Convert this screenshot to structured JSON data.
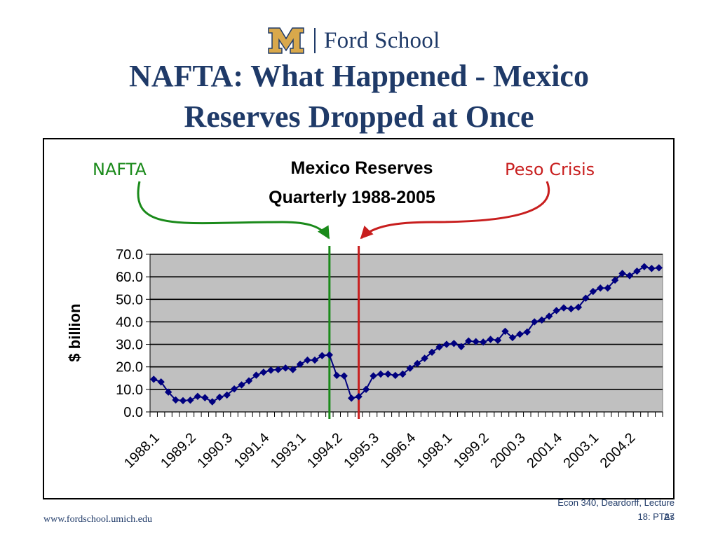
{
  "header": {
    "logo_text": "Ford School",
    "title_line1": "NAFTA: What Happened - Mexico",
    "title_line2": "Reserves Dropped at Once"
  },
  "annotations": {
    "left_label": "NAFTA",
    "right_label": "Peso Crisis"
  },
  "colors": {
    "brand_blue": "#1f3a68",
    "maize": "#d9a84b",
    "nafta_green": "#1a8a1a",
    "crisis_red": "#c81e1e",
    "series": "#00007f",
    "plot_bg": "#c0c0c0"
  },
  "footer": {
    "url": "www.fordschool.umich.edu",
    "line1": "Econ 340, Deardorff, Lecture",
    "line2": "18: PTAs",
    "page": "27"
  },
  "chart_data": {
    "type": "line",
    "title": "Mexico Reserves",
    "subtitle": "Quarterly 1988-2005",
    "xlabel": "",
    "ylabel": "$ billion",
    "ylim": [
      0,
      70
    ],
    "yticks": [
      "0.0",
      "10.0",
      "20.0",
      "30.0",
      "40.0",
      "50.0",
      "60.0",
      "70.0"
    ],
    "x_tick_labels": [
      "1988.1",
      "1989.2",
      "1990.3",
      "1991.4",
      "1993.1",
      "1994.2",
      "1995.3",
      "1996.4",
      "1998.1",
      "1999.2",
      "2000.3",
      "2001.4",
      "2003.1",
      "2004.2"
    ],
    "grid": true,
    "legend": "none",
    "vertical_markers": [
      {
        "at": "1994.1",
        "color": "green"
      },
      {
        "at": "1995.1",
        "color": "red"
      }
    ],
    "series": [
      {
        "x": [
          "1988.1",
          "1988.2",
          "1988.3",
          "1988.4",
          "1989.1",
          "1989.2",
          "1989.3",
          "1989.4",
          "1990.1",
          "1990.2",
          "1990.3",
          "1990.4",
          "1991.1",
          "1991.2",
          "1991.3",
          "1991.4",
          "1992.1",
          "1992.2",
          "1992.3",
          "1992.4",
          "1993.1",
          "1993.2",
          "1993.3",
          "1993.4",
          "1994.1",
          "1994.2",
          "1994.3",
          "1994.4",
          "1995.1",
          "1995.2",
          "1995.3",
          "1995.4",
          "1996.1",
          "1996.2",
          "1996.3",
          "1996.4",
          "1997.1",
          "1997.2",
          "1997.3",
          "1997.4",
          "1998.1",
          "1998.2",
          "1998.3",
          "1998.4",
          "1999.1",
          "1999.2",
          "1999.3",
          "1999.4",
          "2000.1",
          "2000.2",
          "2000.3",
          "2000.4",
          "2001.1",
          "2001.2",
          "2001.3",
          "2001.4",
          "2002.1",
          "2002.2",
          "2002.3",
          "2002.4",
          "2003.1",
          "2003.2",
          "2003.3",
          "2003.4",
          "2004.1",
          "2004.2",
          "2004.3",
          "2004.4",
          "2005.1",
          "2005.2"
        ],
        "values": [
          14.5,
          13.3,
          8.8,
          5.3,
          5.0,
          5.2,
          6.9,
          6.3,
          4.5,
          6.5,
          7.5,
          10.2,
          12.0,
          13.8,
          16.3,
          17.6,
          18.5,
          18.8,
          19.5,
          18.8,
          21.2,
          23.0,
          23.0,
          25.0,
          25.3,
          16.2,
          16.0,
          6.1,
          6.8,
          10.0,
          16.0,
          16.8,
          16.8,
          16.2,
          16.8,
          19.4,
          21.5,
          23.8,
          26.5,
          28.8,
          30.0,
          30.4,
          29.0,
          31.5,
          31.2,
          31.0,
          32.2,
          31.8,
          35.8,
          33.0,
          34.5,
          35.5,
          40.0,
          40.8,
          42.5,
          45.0,
          46.2,
          45.8,
          46.5,
          50.5,
          53.5,
          55.0,
          55.0,
          58.5,
          61.5,
          60.5,
          62.5,
          64.5,
          63.7,
          64.0
        ]
      }
    ]
  }
}
